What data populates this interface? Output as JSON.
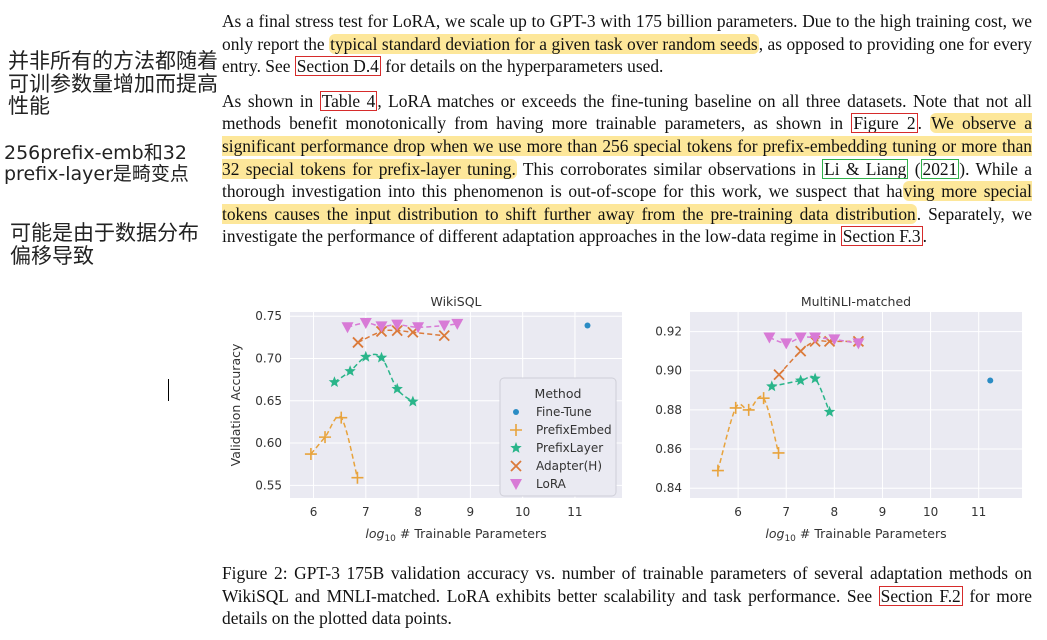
{
  "notes": {
    "note1": "并非所有的方法都随着可训参数量增加而提高性能",
    "note2": "256prefix-emb和32 prefix-layer是畸变点",
    "note3": "可能是由于数据分布偏移导致"
  },
  "paragraph1": {
    "t1": "As a final stress test for LoRA, we scale up to GPT-3 with 175 billion parameters. Due to the high training cost, we only report the ",
    "h1": "typical standard deviation for a given task over random seeds",
    "t2": ", as opposed to providing one for every entry. See ",
    "r1": "Section D.4",
    "t3": " for details on the hyperparameters used."
  },
  "paragraph2": {
    "t1": "As shown in ",
    "r1": "Table 4",
    "t2": ", LoRA matches or exceeds the fine-tuning baseline on all three datasets. Note that not all methods benefit monotonically from having more trainable parameters, as shown in ",
    "r2": "Figure 2",
    "t3": ". ",
    "h1": "We observe a significant performance drop when we use more than 256 special tokens for prefix-embedding tuning or more than 32 special tokens for prefix-layer tuning.",
    "t4": " This corroborates similar observations in ",
    "c1": "Li & Liang",
    "t5": " (",
    "c2": "2021",
    "t6": "). While a thorough investigation into this phenomenon is out-of-scope for this work, we suspect that ha",
    "h2": "ving more special tokens causes the input distribution to shift further away from the pre-training data distribution",
    "t7": ". Separately, we investigate the performance of different adaptation approaches in the low-data regime in ",
    "r3": "Section F.3",
    "t8": "."
  },
  "caption": {
    "t1": "Figure 2: GPT-3 175B validation accuracy vs. number of trainable parameters of several adaptation methods on WikiSQL and MNLI-matched. LoRA exhibits better scalability and task performance. See ",
    "r1": "Section F.2",
    "t2": " for more details on the plotted data points."
  },
  "chart_data": [
    {
      "type": "scatter",
      "title": "WikiSQL",
      "xlabel": "log10 # Trainable Parameters",
      "ylabel": "Validation Accuracy",
      "xlim": [
        5.55,
        11.9
      ],
      "ylim": [
        0.535,
        0.755
      ],
      "xticks": [
        6,
        7,
        8,
        9,
        10,
        11
      ],
      "yticks": [
        0.55,
        0.6,
        0.65,
        0.7,
        0.75
      ],
      "grid": true,
      "series": [
        {
          "name": "Fine-Tune",
          "marker": "dot",
          "color": "#2b8cc4",
          "points": [
            [
              11.24,
              0.739
            ]
          ]
        },
        {
          "name": "PrefixEmbed",
          "marker": "plus",
          "color": "#e8a33c",
          "points": [
            [
              5.95,
              0.587
            ],
            [
              6.22,
              0.607
            ],
            [
              6.53,
              0.63
            ],
            [
              6.84,
              0.559
            ]
          ]
        },
        {
          "name": "PrefixLayer",
          "marker": "star",
          "color": "#2ab58a",
          "points": [
            [
              6.4,
              0.672
            ],
            [
              6.7,
              0.685
            ],
            [
              7.0,
              0.702
            ],
            [
              7.3,
              0.701
            ],
            [
              7.6,
              0.664
            ],
            [
              7.9,
              0.649
            ]
          ]
        },
        {
          "name": "Adapter(H)",
          "marker": "x",
          "color": "#db7a3a",
          "points": [
            [
              6.85,
              0.719
            ],
            [
              7.3,
              0.732
            ],
            [
              7.6,
              0.733
            ],
            [
              7.9,
              0.731
            ],
            [
              8.5,
              0.727
            ]
          ]
        },
        {
          "name": "LoRA",
          "marker": "tri",
          "color": "#d87ad6",
          "points": [
            [
              6.65,
              0.737
            ],
            [
              7.0,
              0.742
            ],
            [
              7.3,
              0.738
            ],
            [
              7.6,
              0.74
            ],
            [
              8.0,
              0.737
            ],
            [
              8.5,
              0.739
            ],
            [
              8.75,
              0.741
            ]
          ]
        }
      ],
      "legend": {
        "title": "Method",
        "position": "lower-right"
      }
    },
    {
      "type": "scatter",
      "title": "MultiNLI-matched",
      "xlabel": "log10 # Trainable Parameters",
      "ylabel": "",
      "xlim": [
        5.0,
        11.9
      ],
      "ylim": [
        0.835,
        0.93
      ],
      "xticks": [
        6,
        7,
        8,
        9,
        10,
        11
      ],
      "yticks": [
        0.84,
        0.86,
        0.88,
        0.9,
        0.92
      ],
      "grid": true,
      "series": [
        {
          "name": "Fine-Tune",
          "marker": "dot",
          "color": "#2b8cc4",
          "points": [
            [
              11.24,
              0.895
            ]
          ]
        },
        {
          "name": "PrefixEmbed",
          "marker": "plus",
          "color": "#e8a33c",
          "points": [
            [
              5.58,
              0.849
            ],
            [
              5.95,
              0.881
            ],
            [
              6.22,
              0.88
            ],
            [
              6.53,
              0.886
            ],
            [
              6.84,
              0.858
            ]
          ]
        },
        {
          "name": "PrefixLayer",
          "marker": "star",
          "color": "#2ab58a",
          "points": [
            [
              6.7,
              0.892
            ],
            [
              7.3,
              0.895
            ],
            [
              7.6,
              0.896
            ],
            [
              7.9,
              0.879
            ]
          ]
        },
        {
          "name": "Adapter(H)",
          "marker": "x",
          "color": "#db7a3a",
          "points": [
            [
              6.85,
              0.898
            ],
            [
              7.3,
              0.91
            ],
            [
              7.6,
              0.915
            ],
            [
              7.9,
              0.915
            ],
            [
              8.5,
              0.915
            ]
          ]
        },
        {
          "name": "LoRA",
          "marker": "tri",
          "color": "#d87ad6",
          "points": [
            [
              6.65,
              0.917
            ],
            [
              7.0,
              0.914
            ],
            [
              7.3,
              0.917
            ],
            [
              7.6,
              0.917
            ],
            [
              8.0,
              0.916
            ],
            [
              8.5,
              0.914
            ]
          ]
        }
      ]
    }
  ]
}
